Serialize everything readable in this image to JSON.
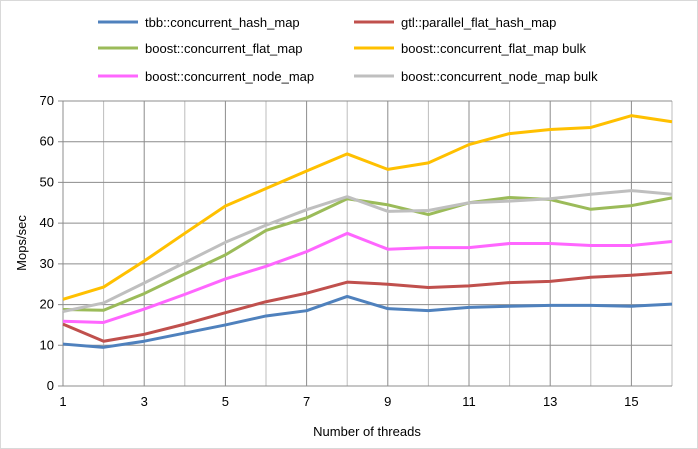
{
  "chart_data": {
    "type": "line",
    "title": "",
    "xlabel": "Number of threads",
    "ylabel": "Mops/sec",
    "xlim": [
      1,
      16
    ],
    "ylim": [
      0,
      70
    ],
    "xticks": [
      1,
      3,
      5,
      7,
      9,
      11,
      13,
      15
    ],
    "yticks": [
      0,
      10,
      20,
      30,
      40,
      50,
      60,
      70
    ],
    "grid": true,
    "legend_position": "top",
    "x": [
      1,
      2,
      3,
      4,
      5,
      6,
      7,
      8,
      9,
      10,
      11,
      12,
      13,
      14,
      15,
      16
    ],
    "series": [
      {
        "name": "tbb::concurrent_hash_map",
        "color": "#4f81bd",
        "values": [
          10.3,
          9.5,
          11,
          13,
          15,
          17.2,
          18.5,
          22,
          19,
          18.5,
          19.3,
          19.6,
          19.8,
          19.8,
          19.6,
          20.1
        ]
      },
      {
        "name": "gtl::parallel_flat_hash_map",
        "color": "#c0504d",
        "values": [
          15.2,
          11,
          12.7,
          15.2,
          18,
          20.7,
          22.8,
          25.5,
          25,
          24.2,
          24.6,
          25.4,
          25.7,
          26.7,
          27.2,
          27.9
        ]
      },
      {
        "name": "boost::concurrent_flat_map",
        "color": "#9bbb59",
        "values": [
          18.8,
          18.6,
          22.7,
          27.5,
          32.2,
          38.2,
          41.3,
          46,
          44.5,
          42.1,
          45,
          46.3,
          45.8,
          43.4,
          44.3,
          46.2
        ]
      },
      {
        "name": "boost::concurrent_flat_map bulk",
        "color": "#ffc000",
        "values": [
          21.3,
          24.3,
          30.7,
          37.5,
          44.2,
          48.5,
          52.8,
          57,
          53.2,
          54.8,
          59.3,
          62,
          63,
          63.5,
          66.4,
          64.9
        ]
      },
      {
        "name": "boost::concurrent_node_map",
        "color": "#ff66ff",
        "values": [
          15.9,
          15.6,
          18.9,
          22.5,
          26.3,
          29.4,
          33,
          37.5,
          33.6,
          34,
          34,
          35,
          35,
          34.5,
          34.5,
          35.5
        ]
      },
      {
        "name": "boost::concurrent_node_map bulk",
        "color": "#bfbfbf",
        "values": [
          18.3,
          20.4,
          25.3,
          30.3,
          35.3,
          39.5,
          43.3,
          46.5,
          42.9,
          43.1,
          45,
          45.4,
          46,
          47.1,
          48,
          47.1
        ]
      }
    ]
  }
}
